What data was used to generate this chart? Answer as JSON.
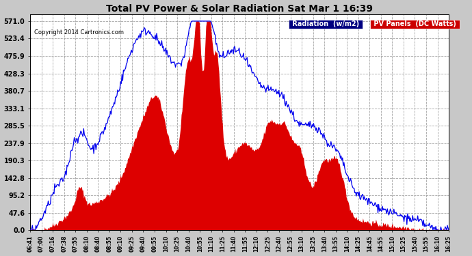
{
  "title": "Total PV Power & Solar Radiation Sat Mar 1 16:39",
  "copyright": "Copyright 2014 Cartronics.com",
  "legend_radiation": "Radiation  (w/m2)",
  "legend_pv": "PV Panels  (DC Watts)",
  "yticks": [
    0.0,
    47.6,
    95.2,
    142.8,
    190.3,
    237.9,
    285.5,
    333.1,
    380.7,
    428.3,
    475.9,
    523.4,
    571.0
  ],
  "ymax": 590,
  "background_color": "#c8c8c8",
  "plot_bg_color": "#ffffff",
  "grid_color": "#999999",
  "radiation_color": "#0000ee",
  "pv_color": "#dd0000",
  "xtick_labels": [
    "06:41",
    "07:00",
    "07:16",
    "07:38",
    "07:55",
    "08:10",
    "08:40",
    "08:55",
    "09:10",
    "09:25",
    "09:40",
    "09:55",
    "10:10",
    "10:25",
    "10:40",
    "10:55",
    "11:10",
    "11:25",
    "11:40",
    "11:55",
    "12:10",
    "12:25",
    "12:40",
    "12:55",
    "13:10",
    "13:25",
    "13:40",
    "13:55",
    "14:10",
    "14:25",
    "14:45",
    "14:55",
    "15:10",
    "15:25",
    "15:40",
    "15:55",
    "16:10",
    "16:25"
  ]
}
